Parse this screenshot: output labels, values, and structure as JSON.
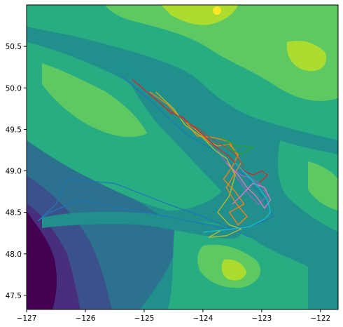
{
  "chart_data": {
    "type": "map",
    "title": "",
    "xlabel": "",
    "ylabel": "",
    "xlim": [
      -127.0,
      -121.7
    ],
    "ylim": [
      47.33,
      51.0
    ],
    "xticks": [
      -127,
      -126,
      -125,
      -124,
      -123,
      -122
    ],
    "xtick_labels": [
      "−127",
      "−126",
      "−125",
      "−124",
      "−123",
      "−122"
    ],
    "yticks": [
      47.5,
      48.0,
      48.5,
      49.0,
      49.5,
      50.0,
      50.5
    ],
    "ytick_labels": [
      "47.5",
      "48.0",
      "48.5",
      "49.0",
      "49.5",
      "50.0",
      "50.5"
    ],
    "background": "filled elevation/bathymetry contours (viridis)",
    "colors": {
      "deep": "#440154",
      "deep2": "#472f7d",
      "deep3": "#3b518b",
      "mid": "#2c718e",
      "shelf": "#21908d",
      "coast": "#27ad81",
      "land_low": "#33b57a",
      "land_mid": "#5ec962",
      "land_high": "#addc30",
      "peak": "#fde725"
    },
    "series": [
      {
        "color": "#1f77b4",
        "points": [
          [
            -125.4,
            50.15
          ],
          [
            -124.9,
            49.85
          ],
          [
            -124.3,
            49.45
          ],
          [
            -123.7,
            49.2
          ],
          [
            -123.3,
            48.95
          ],
          [
            -123.0,
            48.7
          ],
          [
            -122.8,
            48.45
          ],
          [
            -123.1,
            48.35
          ],
          [
            -123.6,
            48.3
          ],
          [
            -124.6,
            48.45
          ],
          [
            -125.4,
            48.55
          ],
          [
            -126.1,
            48.65
          ],
          [
            -126.6,
            48.5
          ],
          [
            -126.8,
            48.4
          ],
          [
            -126.5,
            48.6
          ],
          [
            -126.3,
            48.9
          ],
          [
            -125.5,
            48.85
          ],
          [
            -124.6,
            48.6
          ],
          [
            -124.0,
            48.45
          ],
          [
            -123.5,
            48.3
          ],
          [
            -123.2,
            48.2
          ]
        ]
      },
      {
        "color": "#ff7f0e",
        "points": [
          [
            -124.9,
            49.95
          ],
          [
            -124.6,
            49.8
          ],
          [
            -124.4,
            49.65
          ],
          [
            -124.2,
            49.55
          ],
          [
            -124.05,
            49.45
          ],
          [
            -123.9,
            49.35
          ],
          [
            -123.75,
            49.3
          ],
          [
            -123.55,
            49.32
          ],
          [
            -123.4,
            49.2
          ],
          [
            -123.5,
            49.05
          ],
          [
            -123.65,
            48.9
          ],
          [
            -123.45,
            48.75
          ],
          [
            -123.3,
            48.6
          ],
          [
            -123.55,
            48.5
          ],
          [
            -123.4,
            48.35
          ],
          [
            -123.25,
            48.45
          ],
          [
            -123.45,
            48.62
          ],
          [
            -123.6,
            48.8
          ],
          [
            -123.35,
            49.1
          ],
          [
            -123.55,
            49.35
          ],
          [
            -123.8,
            49.4
          ],
          [
            -124.1,
            49.42
          ],
          [
            -124.3,
            49.6
          ]
        ]
      },
      {
        "color": "#2ca02c",
        "points": [
          [
            -123.7,
            49.4
          ],
          [
            -123.55,
            49.35
          ],
          [
            -123.42,
            49.3
          ],
          [
            -123.3,
            49.3
          ],
          [
            -123.15,
            49.28
          ],
          [
            -123.35,
            49.2
          ],
          [
            -123.5,
            49.25
          ],
          [
            -123.62,
            49.33
          ]
        ]
      },
      {
        "color": "#d62728",
        "points": [
          [
            -125.2,
            50.1
          ],
          [
            -124.95,
            49.95
          ],
          [
            -124.7,
            49.8
          ],
          [
            -124.55,
            49.7
          ],
          [
            -124.35,
            49.65
          ],
          [
            -124.2,
            49.55
          ],
          [
            -124.1,
            49.5
          ],
          [
            -123.95,
            49.4
          ],
          [
            -123.8,
            49.3
          ],
          [
            -123.6,
            49.2
          ],
          [
            -123.45,
            49.1
          ],
          [
            -123.3,
            49.0
          ],
          [
            -123.15,
            48.95
          ],
          [
            -123.0,
            49.0
          ],
          [
            -122.9,
            48.95
          ],
          [
            -123.05,
            48.85
          ]
        ]
      },
      {
        "color": "#9467bd",
        "points": [
          [
            -123.75,
            49.25
          ],
          [
            -123.55,
            49.05
          ],
          [
            -123.35,
            48.95
          ],
          [
            -123.15,
            48.9
          ],
          [
            -123.0,
            48.82
          ],
          [
            -122.9,
            48.7
          ],
          [
            -123.05,
            48.6
          ],
          [
            -123.2,
            48.7
          ],
          [
            -123.35,
            48.85
          ],
          [
            -123.5,
            49.0
          ]
        ]
      },
      {
        "color": "#e377c2",
        "points": [
          [
            -123.6,
            49.1
          ],
          [
            -123.4,
            48.95
          ],
          [
            -123.25,
            48.8
          ],
          [
            -123.1,
            48.7
          ],
          [
            -122.95,
            48.55
          ],
          [
            -122.85,
            48.65
          ],
          [
            -122.95,
            48.8
          ],
          [
            -123.15,
            48.85
          ],
          [
            -123.35,
            48.7
          ],
          [
            -123.5,
            48.6
          ]
        ]
      },
      {
        "color": "#bcbd22",
        "points": [
          [
            -124.8,
            49.95
          ],
          [
            -124.5,
            49.75
          ],
          [
            -124.3,
            49.55
          ],
          [
            -124.0,
            49.4
          ],
          [
            -123.8,
            49.25
          ],
          [
            -123.6,
            49.15
          ],
          [
            -123.45,
            48.95
          ],
          [
            -123.55,
            48.7
          ],
          [
            -123.75,
            48.5
          ],
          [
            -123.55,
            48.35
          ],
          [
            -123.35,
            48.3
          ],
          [
            -123.6,
            48.22
          ],
          [
            -123.9,
            48.2
          ],
          [
            -123.7,
            48.28
          ]
        ]
      },
      {
        "color": "#17becf",
        "points": [
          [
            -123.45,
            49.1
          ],
          [
            -123.25,
            48.95
          ],
          [
            -123.05,
            48.8
          ],
          [
            -122.9,
            48.65
          ],
          [
            -122.85,
            48.5
          ],
          [
            -122.95,
            48.42
          ],
          [
            -123.2,
            48.33
          ],
          [
            -123.5,
            48.3
          ],
          [
            -123.75,
            48.28
          ],
          [
            -124.0,
            48.26
          ]
        ]
      },
      {
        "color": "#8c564b",
        "points": [
          [
            -124.6,
            49.75
          ],
          [
            -124.3,
            49.6
          ],
          [
            -124.05,
            49.5
          ],
          [
            -123.85,
            49.38
          ],
          [
            -123.65,
            49.3
          ],
          [
            -123.45,
            49.2
          ],
          [
            -123.3,
            49.05
          ]
        ]
      }
    ]
  }
}
